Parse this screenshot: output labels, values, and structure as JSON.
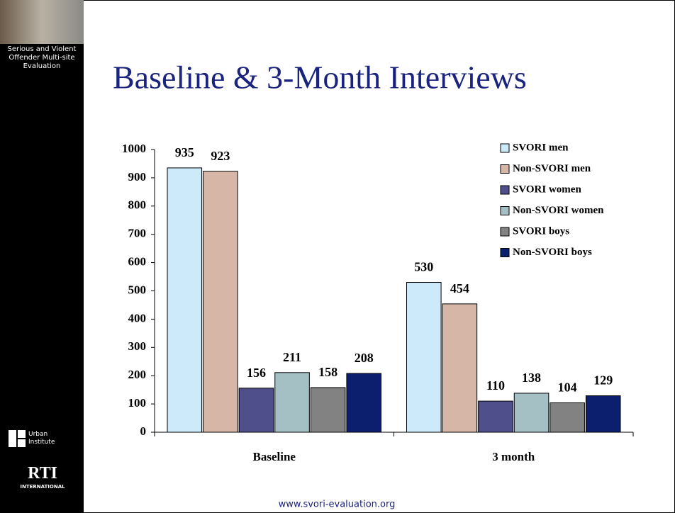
{
  "sidebar": {
    "project": "Serious and Violent Offender Multi-site Evaluation",
    "logo_urban": "Urban Institute",
    "logo_rti": "RTI",
    "logo_rti_sub": "INTERNATIONAL"
  },
  "footer": "www.svori-evaluation.org",
  "chart_data": {
    "type": "bar",
    "title": "Baseline & 3-Month Interviews",
    "categories": [
      "Baseline",
      "3 month"
    ],
    "series": [
      {
        "name": "SVORI men",
        "color": "#cceafa",
        "values": [
          935,
          530
        ]
      },
      {
        "name": "Non-SVORI men",
        "color": "#d6b6a6",
        "values": [
          923,
          454
        ]
      },
      {
        "name": "SVORI women",
        "color": "#4f4f8b",
        "values": [
          156,
          110
        ]
      },
      {
        "name": "Non-SVORI women",
        "color": "#a4c0c4",
        "values": [
          211,
          138
        ]
      },
      {
        "name": "SVORI boys",
        "color": "#828282",
        "values": [
          158,
          104
        ]
      },
      {
        "name": "Non-SVORI boys",
        "color": "#0c1f6e",
        "values": [
          208,
          129
        ]
      }
    ],
    "ylim": [
      0,
      1000
    ],
    "yticks": [
      0,
      100,
      200,
      300,
      400,
      500,
      600,
      700,
      800,
      900,
      1000
    ],
    "grid": false,
    "legend": "top-right",
    "value_labels": true
  }
}
